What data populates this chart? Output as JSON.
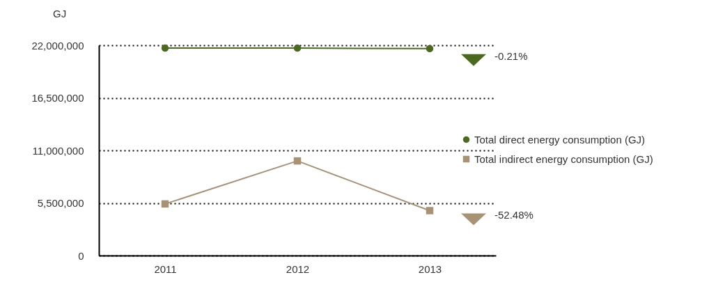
{
  "chart_data": {
    "type": "line",
    "ylabel": "GJ",
    "categories": [
      "2011",
      "2012",
      "2013"
    ],
    "series": [
      {
        "name": "Total direct energy consumption (GJ)",
        "color": "#4a6b1f",
        "marker": "circle",
        "values": [
          21700000,
          21700000,
          21650000
        ]
      },
      {
        "name": "Total indirect energy consumption (GJ)",
        "color": "#a89274",
        "marker": "square",
        "values": [
          5400000,
          9900000,
          4700000
        ]
      }
    ],
    "ylim": [
      0,
      22000000
    ],
    "yticks": [
      0,
      {
        "value": 5500000,
        "label": "5,500,000"
      },
      {
        "value": 11000000,
        "label": "11,000,000"
      },
      {
        "value": 16500000,
        "label": "16,500,000"
      },
      {
        "value": 22000000,
        "label": "22,000,000"
      }
    ],
    "grid": "y",
    "legend": "right",
    "annotations": [
      "-0.21%",
      "-52.48%"
    ]
  }
}
